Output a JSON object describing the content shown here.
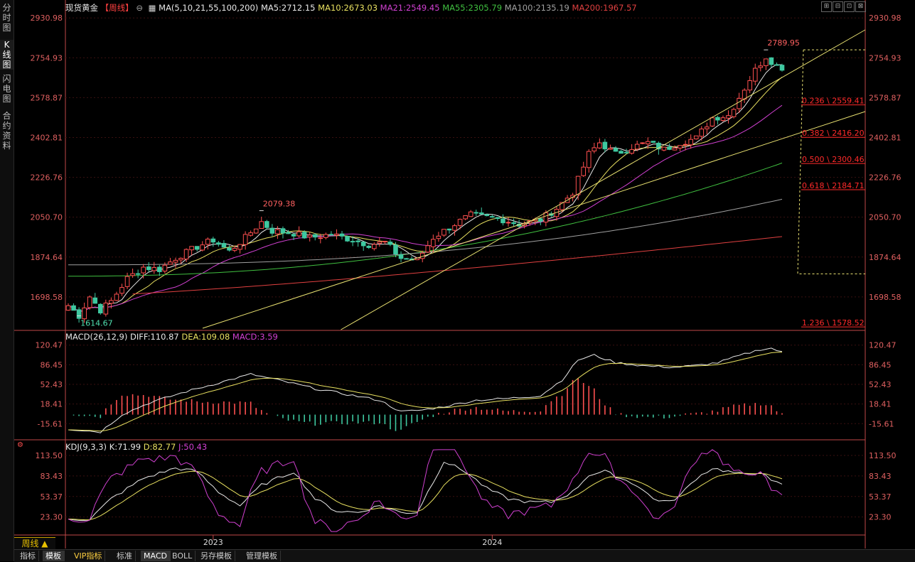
{
  "side_tabs": [
    "分时图",
    "K线图",
    "闪电图",
    "合约资料"
  ],
  "header": {
    "title": "现货黄金",
    "period_tag": "【周线】",
    "ma_label": "MA(5,10,21,55,100,200)",
    "ma": [
      {
        "text": "MA5:2712.15",
        "color": "#e8e8e8"
      },
      {
        "text": "MA10:2673.03",
        "color": "#e8e060"
      },
      {
        "text": "MA21:2549.45",
        "color": "#d040d0"
      },
      {
        "text": "MA55:2305.79",
        "color": "#40c040"
      },
      {
        "text": "MA100:2135.19",
        "color": "#a0a0a0"
      },
      {
        "text": "MA200:1967.57",
        "color": "#e04040"
      }
    ],
    "macd_label": "MACD(26,12,9)",
    "macd": [
      {
        "text": "DIFF:110.87",
        "color": "#e8e8e8"
      },
      {
        "text": "DEA:109.08",
        "color": "#e8e060"
      },
      {
        "text": "MACD:3.59",
        "color": "#d040d0"
      }
    ],
    "kdj_label": "KDJ(9,3,3)",
    "kdj": [
      {
        "text": "K:71.99",
        "color": "#e8e8e8"
      },
      {
        "text": "D:82.77",
        "color": "#e8e060"
      },
      {
        "text": "J:50.43",
        "color": "#d040d0"
      }
    ]
  },
  "window_buttons": [
    "⊞",
    "⊟",
    "⊡",
    "⊠"
  ],
  "colors": {
    "up": "#ff5050",
    "down": "#3ec8a0",
    "grid": "#3a1010",
    "axis": "#c04848",
    "fib": "#ff2a2a"
  },
  "chart_data": [
    {
      "type": "candlestick",
      "title": "现货黄金 周线",
      "price_axis_ticks": [
        2930.98,
        2754.93,
        2578.87,
        2402.81,
        2226.76,
        2050.7,
        1874.64,
        1698.58
      ],
      "ylim": [
        1560,
        2960
      ],
      "x_labels": [
        {
          "text": "2023",
          "index": 27
        },
        {
          "text": "2024",
          "index": 79
        }
      ],
      "annotations": [
        {
          "text": "2789.95",
          "type": "high",
          "index": 130,
          "value": 2789.95
        },
        {
          "text": "2079.38",
          "type": "high",
          "index": 36,
          "value": 2079.38
        },
        {
          "text": "1614.67",
          "type": "low",
          "index": 2,
          "value": 1614.67
        }
      ],
      "fibonacci": [
        {
          "text": "0.236 \\ 2559.41",
          "value": 2559.41
        },
        {
          "text": "0.382 \\ 2416.20",
          "value": 2416.2
        },
        {
          "text": "0.500 \\ 2300.46",
          "value": 2300.46
        },
        {
          "text": "0.618 \\ 2184.71",
          "value": 2184.71
        },
        {
          "text": "1.236 \\ 1578.52",
          "value": 1578.52
        }
      ],
      "anchors": [
        [
          0,
          1660
        ],
        [
          2,
          1615
        ],
        [
          4,
          1700
        ],
        [
          6,
          1640
        ],
        [
          8,
          1680
        ],
        [
          11,
          1780
        ],
        [
          14,
          1830
        ],
        [
          17,
          1820
        ],
        [
          20,
          1870
        ],
        [
          24,
          1920
        ],
        [
          27,
          1950
        ],
        [
          30,
          1900
        ],
        [
          33,
          1960
        ],
        [
          36,
          2030
        ],
        [
          38,
          1990
        ],
        [
          42,
          1980
        ],
        [
          45,
          1960
        ],
        [
          49,
          1975
        ],
        [
          53,
          1950
        ],
        [
          56,
          1930
        ],
        [
          59,
          1940
        ],
        [
          62,
          1870
        ],
        [
          65,
          1860
        ],
        [
          68,
          1960
        ],
        [
          72,
          2020
        ],
        [
          75,
          2060
        ],
        [
          78,
          2050
        ],
        [
          81,
          2040
        ],
        [
          84,
          2020
        ],
        [
          88,
          2040
        ],
        [
          91,
          2090
        ],
        [
          94,
          2160
        ],
        [
          97,
          2330
        ],
        [
          99,
          2380
        ],
        [
          102,
          2330
        ],
        [
          105,
          2360
        ],
        [
          108,
          2380
        ],
        [
          111,
          2350
        ],
        [
          114,
          2380
        ],
        [
          117,
          2400
        ],
        [
          120,
          2490
        ],
        [
          123,
          2500
        ],
        [
          126,
          2620
        ],
        [
          128,
          2700
        ],
        [
          130,
          2760
        ],
        [
          132,
          2720
        ],
        [
          133,
          2700
        ]
      ]
    },
    {
      "type": "macd",
      "axis_ticks": [
        120.47,
        86.45,
        52.43,
        18.41,
        -15.61
      ],
      "ylim": [
        -35,
        130
      ],
      "diff_anchors": [
        [
          0,
          -25
        ],
        [
          6,
          -30
        ],
        [
          10,
          0
        ],
        [
          15,
          20
        ],
        [
          22,
          40
        ],
        [
          28,
          55
        ],
        [
          34,
          70
        ],
        [
          40,
          58
        ],
        [
          46,
          45
        ],
        [
          52,
          35
        ],
        [
          58,
          25
        ],
        [
          62,
          5
        ],
        [
          66,
          8
        ],
        [
          70,
          14
        ],
        [
          76,
          25
        ],
        [
          82,
          28
        ],
        [
          88,
          33
        ],
        [
          92,
          60
        ],
        [
          95,
          95
        ],
        [
          98,
          103
        ],
        [
          102,
          90
        ],
        [
          108,
          84
        ],
        [
          113,
          82
        ],
        [
          117,
          85
        ],
        [
          121,
          90
        ],
        [
          125,
          102
        ],
        [
          129,
          113
        ],
        [
          131,
          115
        ],
        [
          133,
          108
        ]
      ]
    },
    {
      "type": "kdj",
      "axis_ticks": [
        113.5,
        83.43,
        53.37,
        23.3
      ],
      "ylim": [
        0,
        125
      ],
      "k_anchors": [
        [
          0,
          20
        ],
        [
          4,
          20
        ],
        [
          8,
          50
        ],
        [
          14,
          80
        ],
        [
          20,
          95
        ],
        [
          24,
          90
        ],
        [
          28,
          60
        ],
        [
          32,
          40
        ],
        [
          36,
          70
        ],
        [
          42,
          90
        ],
        [
          46,
          50
        ],
        [
          50,
          32
        ],
        [
          54,
          30
        ],
        [
          58,
          40
        ],
        [
          62,
          30
        ],
        [
          65,
          30
        ],
        [
          67,
          60
        ],
        [
          70,
          105
        ],
        [
          74,
          90
        ],
        [
          78,
          65
        ],
        [
          82,
          50
        ],
        [
          86,
          45
        ],
        [
          90,
          45
        ],
        [
          94,
          60
        ],
        [
          97,
          85
        ],
        [
          100,
          90
        ],
        [
          103,
          80
        ],
        [
          106,
          70
        ],
        [
          109,
          50
        ],
        [
          112,
          45
        ],
        [
          114,
          55
        ],
        [
          117,
          80
        ],
        [
          120,
          95
        ],
        [
          123,
          90
        ],
        [
          126,
          85
        ],
        [
          129,
          90
        ],
        [
          131,
          75
        ],
        [
          133,
          72
        ]
      ]
    }
  ],
  "bottom": {
    "period_label": "周线 ▲",
    "tabs": [
      "指标",
      "模板",
      "VIP指标",
      "标准",
      "MACD",
      "BOLL",
      "另存模板",
      "管理模板"
    ]
  }
}
